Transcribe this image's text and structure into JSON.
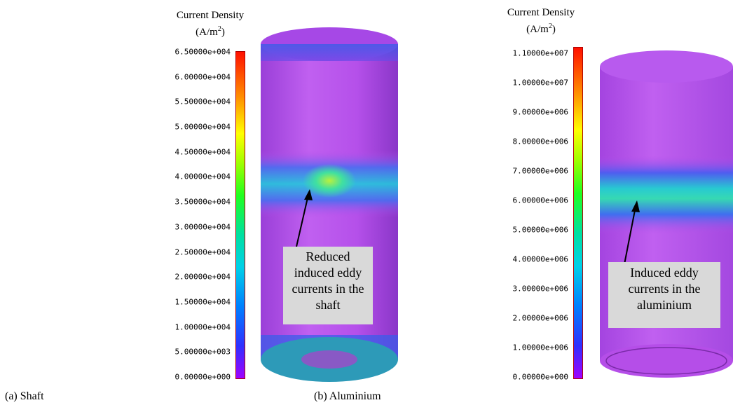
{
  "shaft": {
    "title_line1": "Current Density",
    "unit_base": "(A/m",
    "unit_exp": "2",
    "unit_close": ")",
    "ticks": [
      "6.50000e+004",
      "6.00000e+004",
      "5.50000e+004",
      "5.00000e+004",
      "4.50000e+004",
      "4.00000e+004",
      "3.50000e+004",
      "3.00000e+004",
      "2.50000e+004",
      "2.00000e+004",
      "1.50000e+004",
      "1.00000e+004",
      "5.00000e+003",
      "0.00000e+000"
    ],
    "callout_lines": [
      "Reduced",
      "induced eddy",
      "currents in the",
      "shaft"
    ],
    "caption": "(a) Shaft"
  },
  "aluminium": {
    "title_line1": "Current Density",
    "unit_base": "(A/m",
    "unit_exp": "2",
    "unit_close": ")",
    "ticks": [
      "1.10000e+007",
      "1.00000e+007",
      "9.00000e+006",
      "8.00000e+006",
      "7.00000e+006",
      "6.00000e+006",
      "5.00000e+006",
      "4.00000e+006",
      "3.00000e+006",
      "2.00000e+006",
      "1.00000e+006",
      "0.00000e+000"
    ],
    "callout_lines": [
      "Induced eddy",
      "currents in the",
      "aluminium"
    ],
    "caption": "(b) Aluminium"
  },
  "colors": {
    "cylinder": "#b54ee8",
    "band": "#22c8dc",
    "callout_bg": "#d9d9d9"
  }
}
